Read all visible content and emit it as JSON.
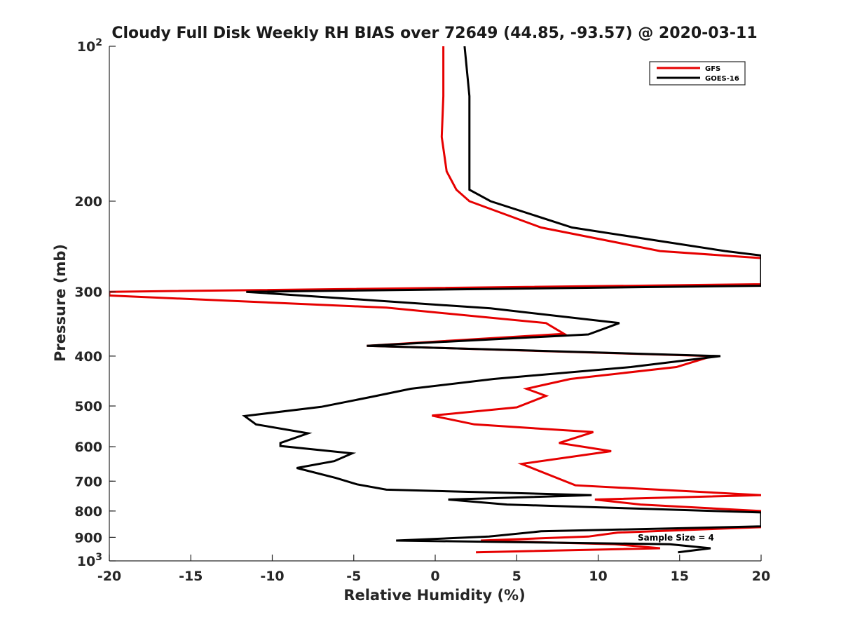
{
  "chart_data": {
    "type": "line",
    "title": "Cloudy Full Disk Weekly RH BIAS over 72649 (44.85, -93.57) @ 2020-03-11",
    "xlabel": "Relative Humidity (%)",
    "ylabel": "Pressure (mb)",
    "xlim": [
      -20,
      20
    ],
    "ylim": [
      100,
      1000
    ],
    "yscale": "log",
    "y_reversed": true,
    "grid": false,
    "legend_position": "top-right",
    "x_ticks": [
      "-20",
      "-15",
      "-10",
      "-5",
      "0",
      "5",
      "10",
      "15",
      "20"
    ],
    "x_tick_values": [
      -20,
      -15,
      -10,
      -5,
      0,
      5,
      10,
      15,
      20
    ],
    "y_ticks": [
      {
        "value": 100,
        "base": "10",
        "exp": "2"
      },
      {
        "value": 200,
        "label": "200"
      },
      {
        "value": 300,
        "label": "300"
      },
      {
        "value": 400,
        "label": "400"
      },
      {
        "value": 500,
        "label": "500"
      },
      {
        "value": 600,
        "label": "600"
      },
      {
        "value": 700,
        "label": "700"
      },
      {
        "value": 800,
        "label": "800"
      },
      {
        "value": 900,
        "label": "900"
      },
      {
        "value": 1000,
        "base": "10",
        "exp": "3"
      }
    ],
    "annotation": "Sample Size = 4",
    "series": [
      {
        "name": "GFS",
        "color": "#e60000",
        "points": [
          [
            0.5,
            100
          ],
          [
            0.5,
            125
          ],
          [
            0.4,
            150
          ],
          [
            0.7,
            175
          ],
          [
            1.3,
            190
          ],
          [
            2.1,
            200
          ],
          [
            6.5,
            225
          ],
          [
            13.8,
            250
          ],
          [
            20.0,
            258
          ],
          [
            20.0,
            290
          ],
          [
            -20.0,
            300
          ],
          [
            -20.0,
            305
          ],
          [
            -3.0,
            322
          ],
          [
            6.8,
            345
          ],
          [
            7.9,
            362
          ],
          [
            -4.2,
            382
          ],
          [
            17.0,
            400
          ],
          [
            14.8,
            420
          ],
          [
            8.3,
            443
          ],
          [
            5.6,
            463
          ],
          [
            6.8,
            478
          ],
          [
            5.0,
            503
          ],
          [
            -0.2,
            522
          ],
          [
            2.4,
            543
          ],
          [
            9.7,
            562
          ],
          [
            7.6,
            590
          ],
          [
            10.8,
            612
          ],
          [
            5.3,
            648
          ],
          [
            8.6,
            713
          ],
          [
            20.0,
            745
          ],
          [
            9.8,
            760
          ],
          [
            12.6,
            777
          ],
          [
            20.0,
            800
          ],
          [
            20.0,
            860
          ],
          [
            11.2,
            881
          ],
          [
            9.4,
            897
          ],
          [
            2.8,
            913
          ],
          [
            11.0,
            928
          ],
          [
            13.8,
            945
          ],
          [
            2.5,
            962
          ]
        ]
      },
      {
        "name": "GOES-16",
        "color": "#000000",
        "points": [
          [
            1.8,
            100
          ],
          [
            2.1,
            125
          ],
          [
            2.1,
            150
          ],
          [
            2.1,
            175
          ],
          [
            2.1,
            190
          ],
          [
            3.4,
            200
          ],
          [
            8.4,
            225
          ],
          [
            17.8,
            250
          ],
          [
            20.0,
            255
          ],
          [
            20.0,
            292
          ],
          [
            -11.6,
            300
          ],
          [
            3.4,
            323
          ],
          [
            11.3,
            345
          ],
          [
            9.4,
            363
          ],
          [
            -4.2,
            382
          ],
          [
            17.5,
            400
          ],
          [
            12.0,
            420
          ],
          [
            3.6,
            443
          ],
          [
            -1.5,
            463
          ],
          [
            -3.9,
            480
          ],
          [
            -7.0,
            502
          ],
          [
            -11.7,
            523
          ],
          [
            -11.0,
            543
          ],
          [
            -7.8,
            565
          ],
          [
            -9.5,
            590
          ],
          [
            -9.5,
            598
          ],
          [
            -5.1,
            618
          ],
          [
            -6.2,
            640
          ],
          [
            -8.5,
            660
          ],
          [
            -6.1,
            690
          ],
          [
            -4.8,
            710
          ],
          [
            -3.0,
            727
          ],
          [
            9.6,
            745
          ],
          [
            0.8,
            760
          ],
          [
            4.4,
            777
          ],
          [
            20.0,
            805
          ],
          [
            20.0,
            857
          ],
          [
            6.5,
            876
          ],
          [
            3.3,
            897
          ],
          [
            -2.4,
            913
          ],
          [
            14.4,
            928
          ],
          [
            16.9,
            945
          ],
          [
            14.9,
            962
          ]
        ]
      }
    ]
  }
}
